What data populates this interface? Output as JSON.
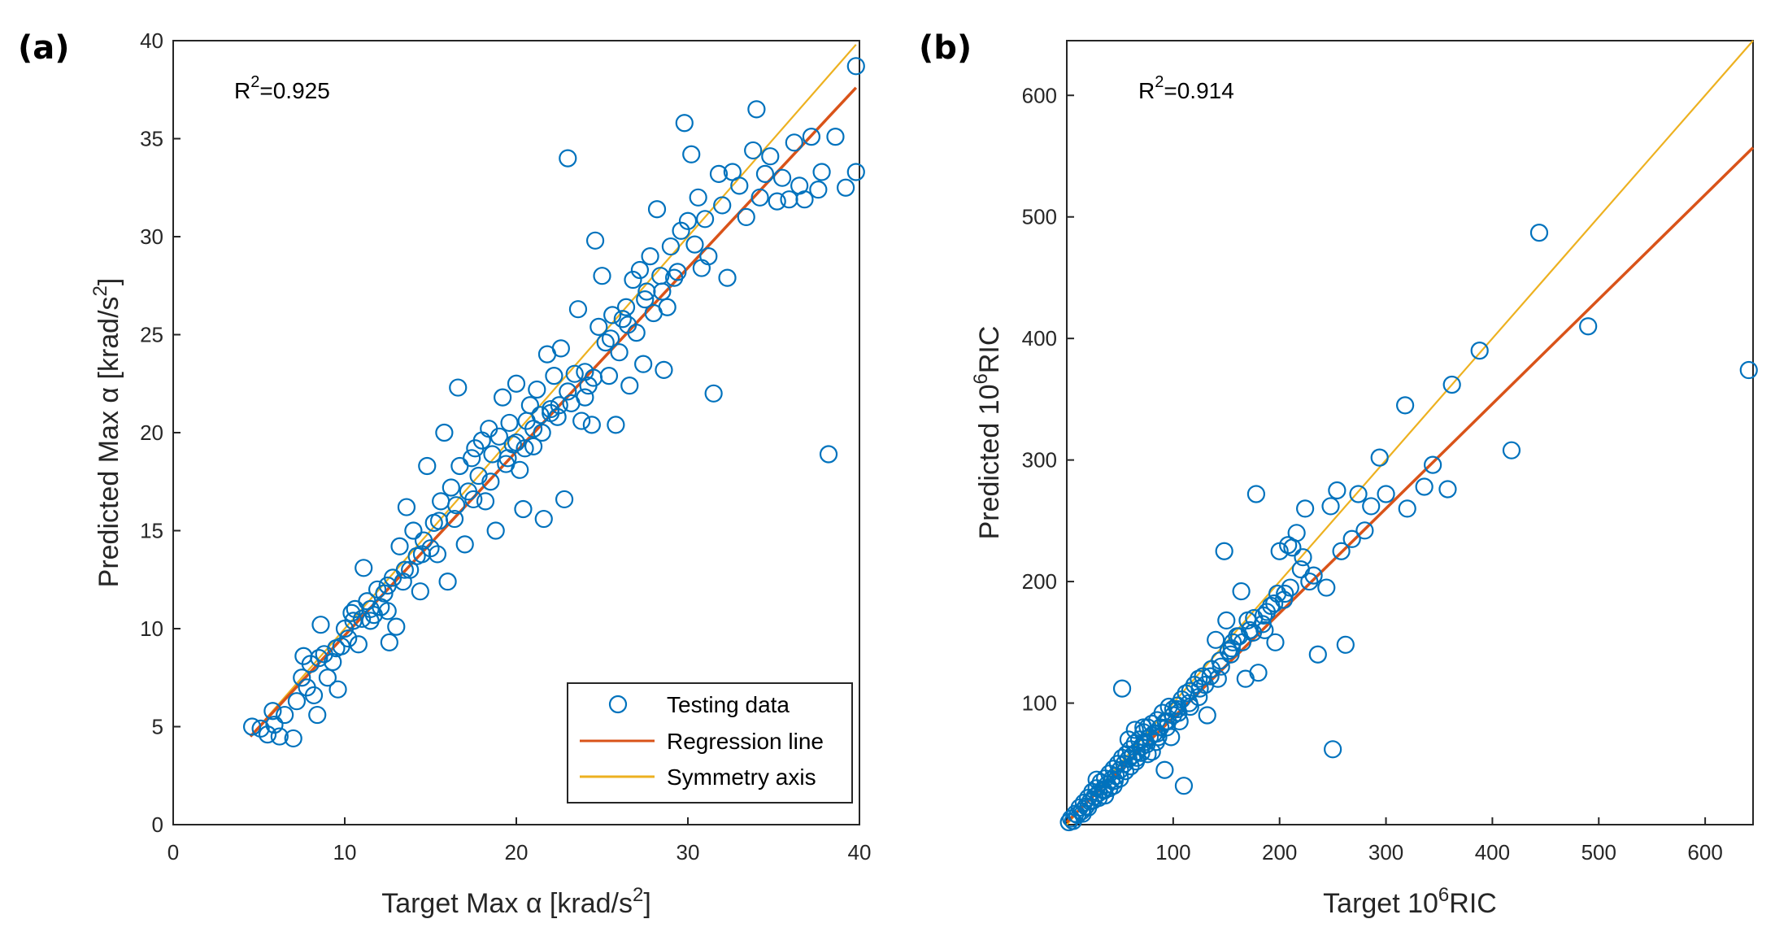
{
  "colors": {
    "scatter": "#0072BD",
    "regression": "#D95319",
    "symmetry": "#EDB120",
    "axis": "#262626"
  },
  "legend": {
    "items": [
      {
        "label": "Testing data",
        "kind": "marker",
        "color": "#0072BD"
      },
      {
        "label": "Regression line",
        "kind": "line",
        "color": "#D95319"
      },
      {
        "label": "Symmetry axis",
        "kind": "line",
        "color": "#EDB120"
      }
    ]
  },
  "chart_data": [
    {
      "type": "scatter",
      "panel_label": "(a)",
      "r2": {
        "base": "R",
        "sup": "2",
        "value": "=0.925"
      },
      "xlabel": {
        "pre": "Target Max  α [krad/s",
        "sup": "2",
        "post": "]"
      },
      "ylabel": {
        "pre": "Predicted Max  α [krad/s",
        "sup": "2",
        "post": "]"
      },
      "xlim": [
        0,
        40
      ],
      "ylim": [
        0,
        40
      ],
      "xticks": [
        "0",
        "10",
        "20",
        "30",
        "40"
      ],
      "yticks": [
        "0",
        "5",
        "10",
        "15",
        "20",
        "25",
        "30",
        "35",
        "40"
      ],
      "regression": {
        "x": [
          4.5,
          39.8
        ],
        "y": [
          4.5,
          37.6
        ]
      },
      "symmetry": {
        "x": [
          4.5,
          39.8
        ],
        "y": [
          4.5,
          39.8
        ]
      },
      "points": [
        [
          4.6,
          5.0
        ],
        [
          5.1,
          4.9
        ],
        [
          5.5,
          4.6
        ],
        [
          5.9,
          5.1
        ],
        [
          6.2,
          4.5
        ],
        [
          5.8,
          5.8
        ],
        [
          6.5,
          5.6
        ],
        [
          7.0,
          4.4
        ],
        [
          7.2,
          6.3
        ],
        [
          7.5,
          7.5
        ],
        [
          7.6,
          8.6
        ],
        [
          7.8,
          7.0
        ],
        [
          8.0,
          8.2
        ],
        [
          8.2,
          6.6
        ],
        [
          8.4,
          5.6
        ],
        [
          8.6,
          10.2
        ],
        [
          8.8,
          8.7
        ],
        [
          9.0,
          7.5
        ],
        [
          9.3,
          8.3
        ],
        [
          9.6,
          6.9
        ],
        [
          9.8,
          9.1
        ],
        [
          10.0,
          10.0
        ],
        [
          10.2,
          9.5
        ],
        [
          10.4,
          10.8
        ],
        [
          10.6,
          11.0
        ],
        [
          10.8,
          9.2
        ],
        [
          11.0,
          10.5
        ],
        [
          11.1,
          13.1
        ],
        [
          11.3,
          11.4
        ],
        [
          11.5,
          10.4
        ],
        [
          11.7,
          10.7
        ],
        [
          11.9,
          12.0
        ],
        [
          12.1,
          11.1
        ],
        [
          12.3,
          11.8
        ],
        [
          12.5,
          10.9
        ],
        [
          12.6,
          9.3
        ],
        [
          12.8,
          12.6
        ],
        [
          13.0,
          10.1
        ],
        [
          13.2,
          14.2
        ],
        [
          13.4,
          12.4
        ],
        [
          13.6,
          16.2
        ],
        [
          13.8,
          13.0
        ],
        [
          14.0,
          15.0
        ],
        [
          14.2,
          13.7
        ],
        [
          14.4,
          11.9
        ],
        [
          14.6,
          14.5
        ],
        [
          14.8,
          18.3
        ],
        [
          15.0,
          14.1
        ],
        [
          15.2,
          15.4
        ],
        [
          15.4,
          13.8
        ],
        [
          15.6,
          16.5
        ],
        [
          15.8,
          20.0
        ],
        [
          16.0,
          12.4
        ],
        [
          16.2,
          17.2
        ],
        [
          16.4,
          15.6
        ],
        [
          16.6,
          22.3
        ],
        [
          16.7,
          18.3
        ],
        [
          17.0,
          14.3
        ],
        [
          17.2,
          17.0
        ],
        [
          17.4,
          18.7
        ],
        [
          17.6,
          19.2
        ],
        [
          17.8,
          17.8
        ],
        [
          18.0,
          19.6
        ],
        [
          18.2,
          16.5
        ],
        [
          18.4,
          20.2
        ],
        [
          18.6,
          18.9
        ],
        [
          18.8,
          15.0
        ],
        [
          19.0,
          19.8
        ],
        [
          19.2,
          21.8
        ],
        [
          19.4,
          18.4
        ],
        [
          19.6,
          20.5
        ],
        [
          19.8,
          19.4
        ],
        [
          20.0,
          22.5
        ],
        [
          20.2,
          18.1
        ],
        [
          20.4,
          16.1
        ],
        [
          20.6,
          20.6
        ],
        [
          20.8,
          21.4
        ],
        [
          21.0,
          19.3
        ],
        [
          21.2,
          22.2
        ],
        [
          21.4,
          20.9
        ],
        [
          21.6,
          15.6
        ],
        [
          21.8,
          24.0
        ],
        [
          22.0,
          21.2
        ],
        [
          22.2,
          22.9
        ],
        [
          22.4,
          20.8
        ],
        [
          22.6,
          24.3
        ],
        [
          22.8,
          16.6
        ],
        [
          23.0,
          34.0
        ],
        [
          23.2,
          21.5
        ],
        [
          23.4,
          23.0
        ],
        [
          23.6,
          26.3
        ],
        [
          23.8,
          20.6
        ],
        [
          24.0,
          21.8
        ],
        [
          24.2,
          22.4
        ],
        [
          24.4,
          20.4
        ],
        [
          24.6,
          29.8
        ],
        [
          24.8,
          25.4
        ],
        [
          25.0,
          28.0
        ],
        [
          25.2,
          24.6
        ],
        [
          25.4,
          22.9
        ],
        [
          25.6,
          26.0
        ],
        [
          25.8,
          20.4
        ],
        [
          26.0,
          24.1
        ],
        [
          26.2,
          25.8
        ],
        [
          26.4,
          26.4
        ],
        [
          26.6,
          22.4
        ],
        [
          26.8,
          27.8
        ],
        [
          27.0,
          25.1
        ],
        [
          27.2,
          28.3
        ],
        [
          27.4,
          23.5
        ],
        [
          27.6,
          27.2
        ],
        [
          27.8,
          29.0
        ],
        [
          28.0,
          26.1
        ],
        [
          28.2,
          31.4
        ],
        [
          28.4,
          28.0
        ],
        [
          28.6,
          23.2
        ],
        [
          28.8,
          26.4
        ],
        [
          29.0,
          29.5
        ],
        [
          29.2,
          27.9
        ],
        [
          29.4,
          28.2
        ],
        [
          29.6,
          30.3
        ],
        [
          29.8,
          35.8
        ],
        [
          30.0,
          30.8
        ],
        [
          30.2,
          34.2
        ],
        [
          30.4,
          29.6
        ],
        [
          30.6,
          32.0
        ],
        [
          30.8,
          28.4
        ],
        [
          31.0,
          30.9
        ],
        [
          31.2,
          29.0
        ],
        [
          31.5,
          22.0
        ],
        [
          31.8,
          33.2
        ],
        [
          32.0,
          31.6
        ],
        [
          32.3,
          27.9
        ],
        [
          32.6,
          33.3
        ],
        [
          33.0,
          32.6
        ],
        [
          33.4,
          31.0
        ],
        [
          33.8,
          34.4
        ],
        [
          34.0,
          36.5
        ],
        [
          34.2,
          32.0
        ],
        [
          34.5,
          33.2
        ],
        [
          34.8,
          34.1
        ],
        [
          35.2,
          31.8
        ],
        [
          35.5,
          33.0
        ],
        [
          35.9,
          31.9
        ],
        [
          36.2,
          34.8
        ],
        [
          36.5,
          32.6
        ],
        [
          36.8,
          31.9
        ],
        [
          37.2,
          35.1
        ],
        [
          37.6,
          32.4
        ],
        [
          37.8,
          33.3
        ],
        [
          38.2,
          18.9
        ],
        [
          38.6,
          35.1
        ],
        [
          39.2,
          32.5
        ],
        [
          39.8,
          33.3
        ],
        [
          39.8,
          38.7
        ],
        [
          20.5,
          19.2
        ],
        [
          21.5,
          20.0
        ],
        [
          22.5,
          21.4
        ],
        [
          18.5,
          17.5
        ],
        [
          17.5,
          16.6
        ],
        [
          16.5,
          16.3
        ],
        [
          15.5,
          15.5
        ],
        [
          14.5,
          13.8
        ],
        [
          13.5,
          13.0
        ],
        [
          12.5,
          12.2
        ],
        [
          11.5,
          11.0
        ],
        [
          10.5,
          10.4
        ],
        [
          9.5,
          9.0
        ],
        [
          8.5,
          8.5
        ],
        [
          24.5,
          22.8
        ],
        [
          25.5,
          24.8
        ],
        [
          26.5,
          25.5
        ],
        [
          27.5,
          26.8
        ],
        [
          28.5,
          27.2
        ],
        [
          19.5,
          18.7
        ],
        [
          20.0,
          19.5
        ],
        [
          21.0,
          20.2
        ],
        [
          22.0,
          21.0
        ],
        [
          23.0,
          22.1
        ],
        [
          24.0,
          23.1
        ]
      ]
    },
    {
      "type": "scatter",
      "panel_label": "(b)",
      "r2": {
        "base": "R",
        "sup": "2",
        "value": "=0.914"
      },
      "xlabel": {
        "pre": "Target 10",
        "sup": "6",
        "post": "RIC"
      },
      "ylabel": {
        "pre": "Predicted 10",
        "sup": "6",
        "post": "RIC"
      },
      "xlim": [
        0,
        645
      ],
      "ylim": [
        0,
        645
      ],
      "xticks": [
        "100",
        "200",
        "300",
        "400",
        "500",
        "600"
      ],
      "yticks": [
        "100",
        "200",
        "300",
        "400",
        "500",
        "600"
      ],
      "regression": {
        "x": [
          0,
          645
        ],
        "y": [
          2,
          557
        ]
      },
      "symmetry": {
        "x": [
          0,
          645
        ],
        "y": [
          0,
          645
        ]
      },
      "points": [
        [
          2,
          2
        ],
        [
          4,
          5
        ],
        [
          6,
          3
        ],
        [
          8,
          9
        ],
        [
          10,
          8
        ],
        [
          12,
          14
        ],
        [
          14,
          11
        ],
        [
          16,
          18
        ],
        [
          18,
          15
        ],
        [
          20,
          22
        ],
        [
          22,
          19
        ],
        [
          24,
          27
        ],
        [
          26,
          23
        ],
        [
          28,
          30
        ],
        [
          30,
          26
        ],
        [
          32,
          35
        ],
        [
          34,
          29
        ],
        [
          36,
          38
        ],
        [
          38,
          33
        ],
        [
          40,
          42
        ],
        [
          42,
          37
        ],
        [
          44,
          46
        ],
        [
          46,
          40
        ],
        [
          48,
          50
        ],
        [
          50,
          45
        ],
        [
          52,
          55
        ],
        [
          54,
          50
        ],
        [
          56,
          58
        ],
        [
          58,
          54
        ],
        [
          60,
          62
        ],
        [
          62,
          57
        ],
        [
          64,
          67
        ],
        [
          66,
          60
        ],
        [
          68,
          70
        ],
        [
          70,
          64
        ],
        [
          72,
          76
        ],
        [
          74,
          68
        ],
        [
          76,
          80
        ],
        [
          78,
          72
        ],
        [
          80,
          83
        ],
        [
          82,
          75
        ],
        [
          85,
          86
        ],
        [
          88,
          80
        ],
        [
          90,
          92
        ],
        [
          93,
          85
        ],
        [
          96,
          97
        ],
        [
          100,
          90
        ],
        [
          104,
          98
        ],
        [
          108,
          103
        ],
        [
          110,
          32
        ],
        [
          112,
          108
        ],
        [
          116,
          110
        ],
        [
          120,
          115
        ],
        [
          124,
          120
        ],
        [
          128,
          122
        ],
        [
          132,
          90
        ],
        [
          136,
          128
        ],
        [
          140,
          152
        ],
        [
          144,
          135
        ],
        [
          148,
          225
        ],
        [
          150,
          168
        ],
        [
          152,
          143
        ],
        [
          156,
          150
        ],
        [
          160,
          155
        ],
        [
          164,
          192
        ],
        [
          168,
          120
        ],
        [
          172,
          160
        ],
        [
          176,
          170
        ],
        [
          178,
          272
        ],
        [
          180,
          125
        ],
        [
          184,
          165
        ],
        [
          188,
          175
        ],
        [
          192,
          180
        ],
        [
          196,
          150
        ],
        [
          200,
          225
        ],
        [
          204,
          185
        ],
        [
          208,
          230
        ],
        [
          212,
          228
        ],
        [
          216,
          240
        ],
        [
          220,
          210
        ],
        [
          224,
          260
        ],
        [
          228,
          200
        ],
        [
          236,
          140
        ],
        [
          244,
          195
        ],
        [
          248,
          262
        ],
        [
          250,
          62
        ],
        [
          254,
          275
        ],
        [
          258,
          225
        ],
        [
          262,
          148
        ],
        [
          268,
          235
        ],
        [
          274,
          272
        ],
        [
          280,
          242
        ],
        [
          286,
          262
        ],
        [
          294,
          302
        ],
        [
          300,
          272
        ],
        [
          318,
          345
        ],
        [
          320,
          260
        ],
        [
          336,
          278
        ],
        [
          344,
          296
        ],
        [
          358,
          276
        ],
        [
          362,
          362
        ],
        [
          388,
          390
        ],
        [
          418,
          308
        ],
        [
          444,
          487
        ],
        [
          490,
          410
        ],
        [
          641,
          374
        ],
        [
          52,
          112
        ],
        [
          64,
          78
        ],
        [
          70,
          59
        ],
        [
          76,
          58
        ],
        [
          84,
          68
        ],
        [
          92,
          45
        ],
        [
          98,
          72
        ],
        [
          106,
          85
        ],
        [
          58,
          70
        ],
        [
          66,
          55
        ],
        [
          72,
          80
        ],
        [
          80,
          60
        ],
        [
          86,
          72
        ],
        [
          94,
          80
        ],
        [
          100,
          95
        ],
        [
          28,
          37
        ],
        [
          36,
          24
        ],
        [
          44,
          32
        ],
        [
          50,
          38
        ],
        [
          104,
          95
        ],
        [
          116,
          97
        ],
        [
          124,
          105
        ],
        [
          130,
          115
        ],
        [
          142,
          120
        ],
        [
          154,
          140
        ],
        [
          162,
          155
        ],
        [
          170,
          168
        ],
        [
          186,
          160
        ],
        [
          198,
          190
        ],
        [
          210,
          195
        ],
        [
          222,
          220
        ],
        [
          232,
          205
        ],
        [
          15,
          9
        ],
        [
          20,
          14
        ],
        [
          25,
          20
        ],
        [
          30,
          22
        ],
        [
          35,
          28
        ],
        [
          40,
          30
        ],
        [
          45,
          36
        ],
        [
          55,
          44
        ],
        [
          60,
          48
        ],
        [
          65,
          52
        ],
        [
          75,
          66
        ],
        [
          85,
          75
        ],
        [
          95,
          85
        ],
        [
          105,
          92
        ],
        [
          115,
          100
        ],
        [
          125,
          112
        ],
        [
          135,
          122
        ],
        [
          145,
          130
        ],
        [
          155,
          145
        ],
        [
          165,
          150
        ],
        [
          175,
          158
        ],
        [
          185,
          172
        ],
        [
          195,
          182
        ],
        [
          205,
          190
        ]
      ]
    }
  ]
}
